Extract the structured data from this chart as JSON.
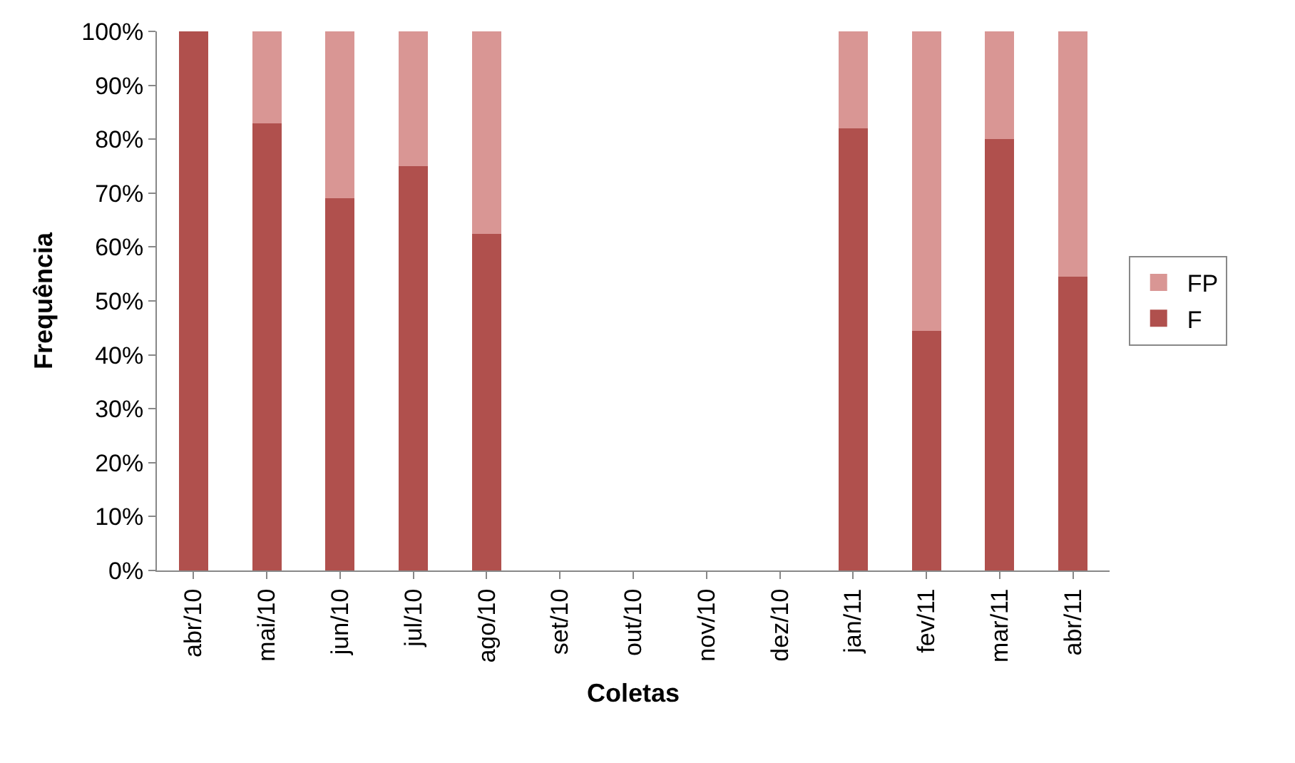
{
  "chart_data": {
    "type": "bar",
    "stacked": true,
    "xlabel": "Coletas",
    "ylabel": "Frequência",
    "categories": [
      "abr/10",
      "mai/10",
      "jun/10",
      "jul/10",
      "ago/10",
      "set/10",
      "out/10",
      "nov/10",
      "dez/10",
      "jan/11",
      "fev/11",
      "mar/11",
      "abr/11"
    ],
    "series": [
      {
        "name": "F",
        "color": "#b0504d",
        "values": [
          100,
          83,
          69,
          75,
          62.5,
          null,
          null,
          null,
          null,
          82,
          44.5,
          80,
          54.5
        ]
      },
      {
        "name": "FP",
        "color": "#d99694",
        "values": [
          0,
          17,
          31,
          25,
          37.5,
          null,
          null,
          null,
          null,
          18,
          55.5,
          20,
          45.5
        ]
      }
    ],
    "ylim": [
      0,
      100
    ],
    "yticks": [
      {
        "value": 0,
        "label": "0%"
      },
      {
        "value": 10,
        "label": "10%"
      },
      {
        "value": 20,
        "label": "20%"
      },
      {
        "value": 30,
        "label": "30%"
      },
      {
        "value": 40,
        "label": "40%"
      },
      {
        "value": 50,
        "label": "50%"
      },
      {
        "value": 60,
        "label": "60%"
      },
      {
        "value": 70,
        "label": "70%"
      },
      {
        "value": 80,
        "label": "80%"
      },
      {
        "value": 90,
        "label": "90%"
      },
      {
        "value": 100,
        "label": "100%"
      }
    ],
    "legend": "right"
  }
}
